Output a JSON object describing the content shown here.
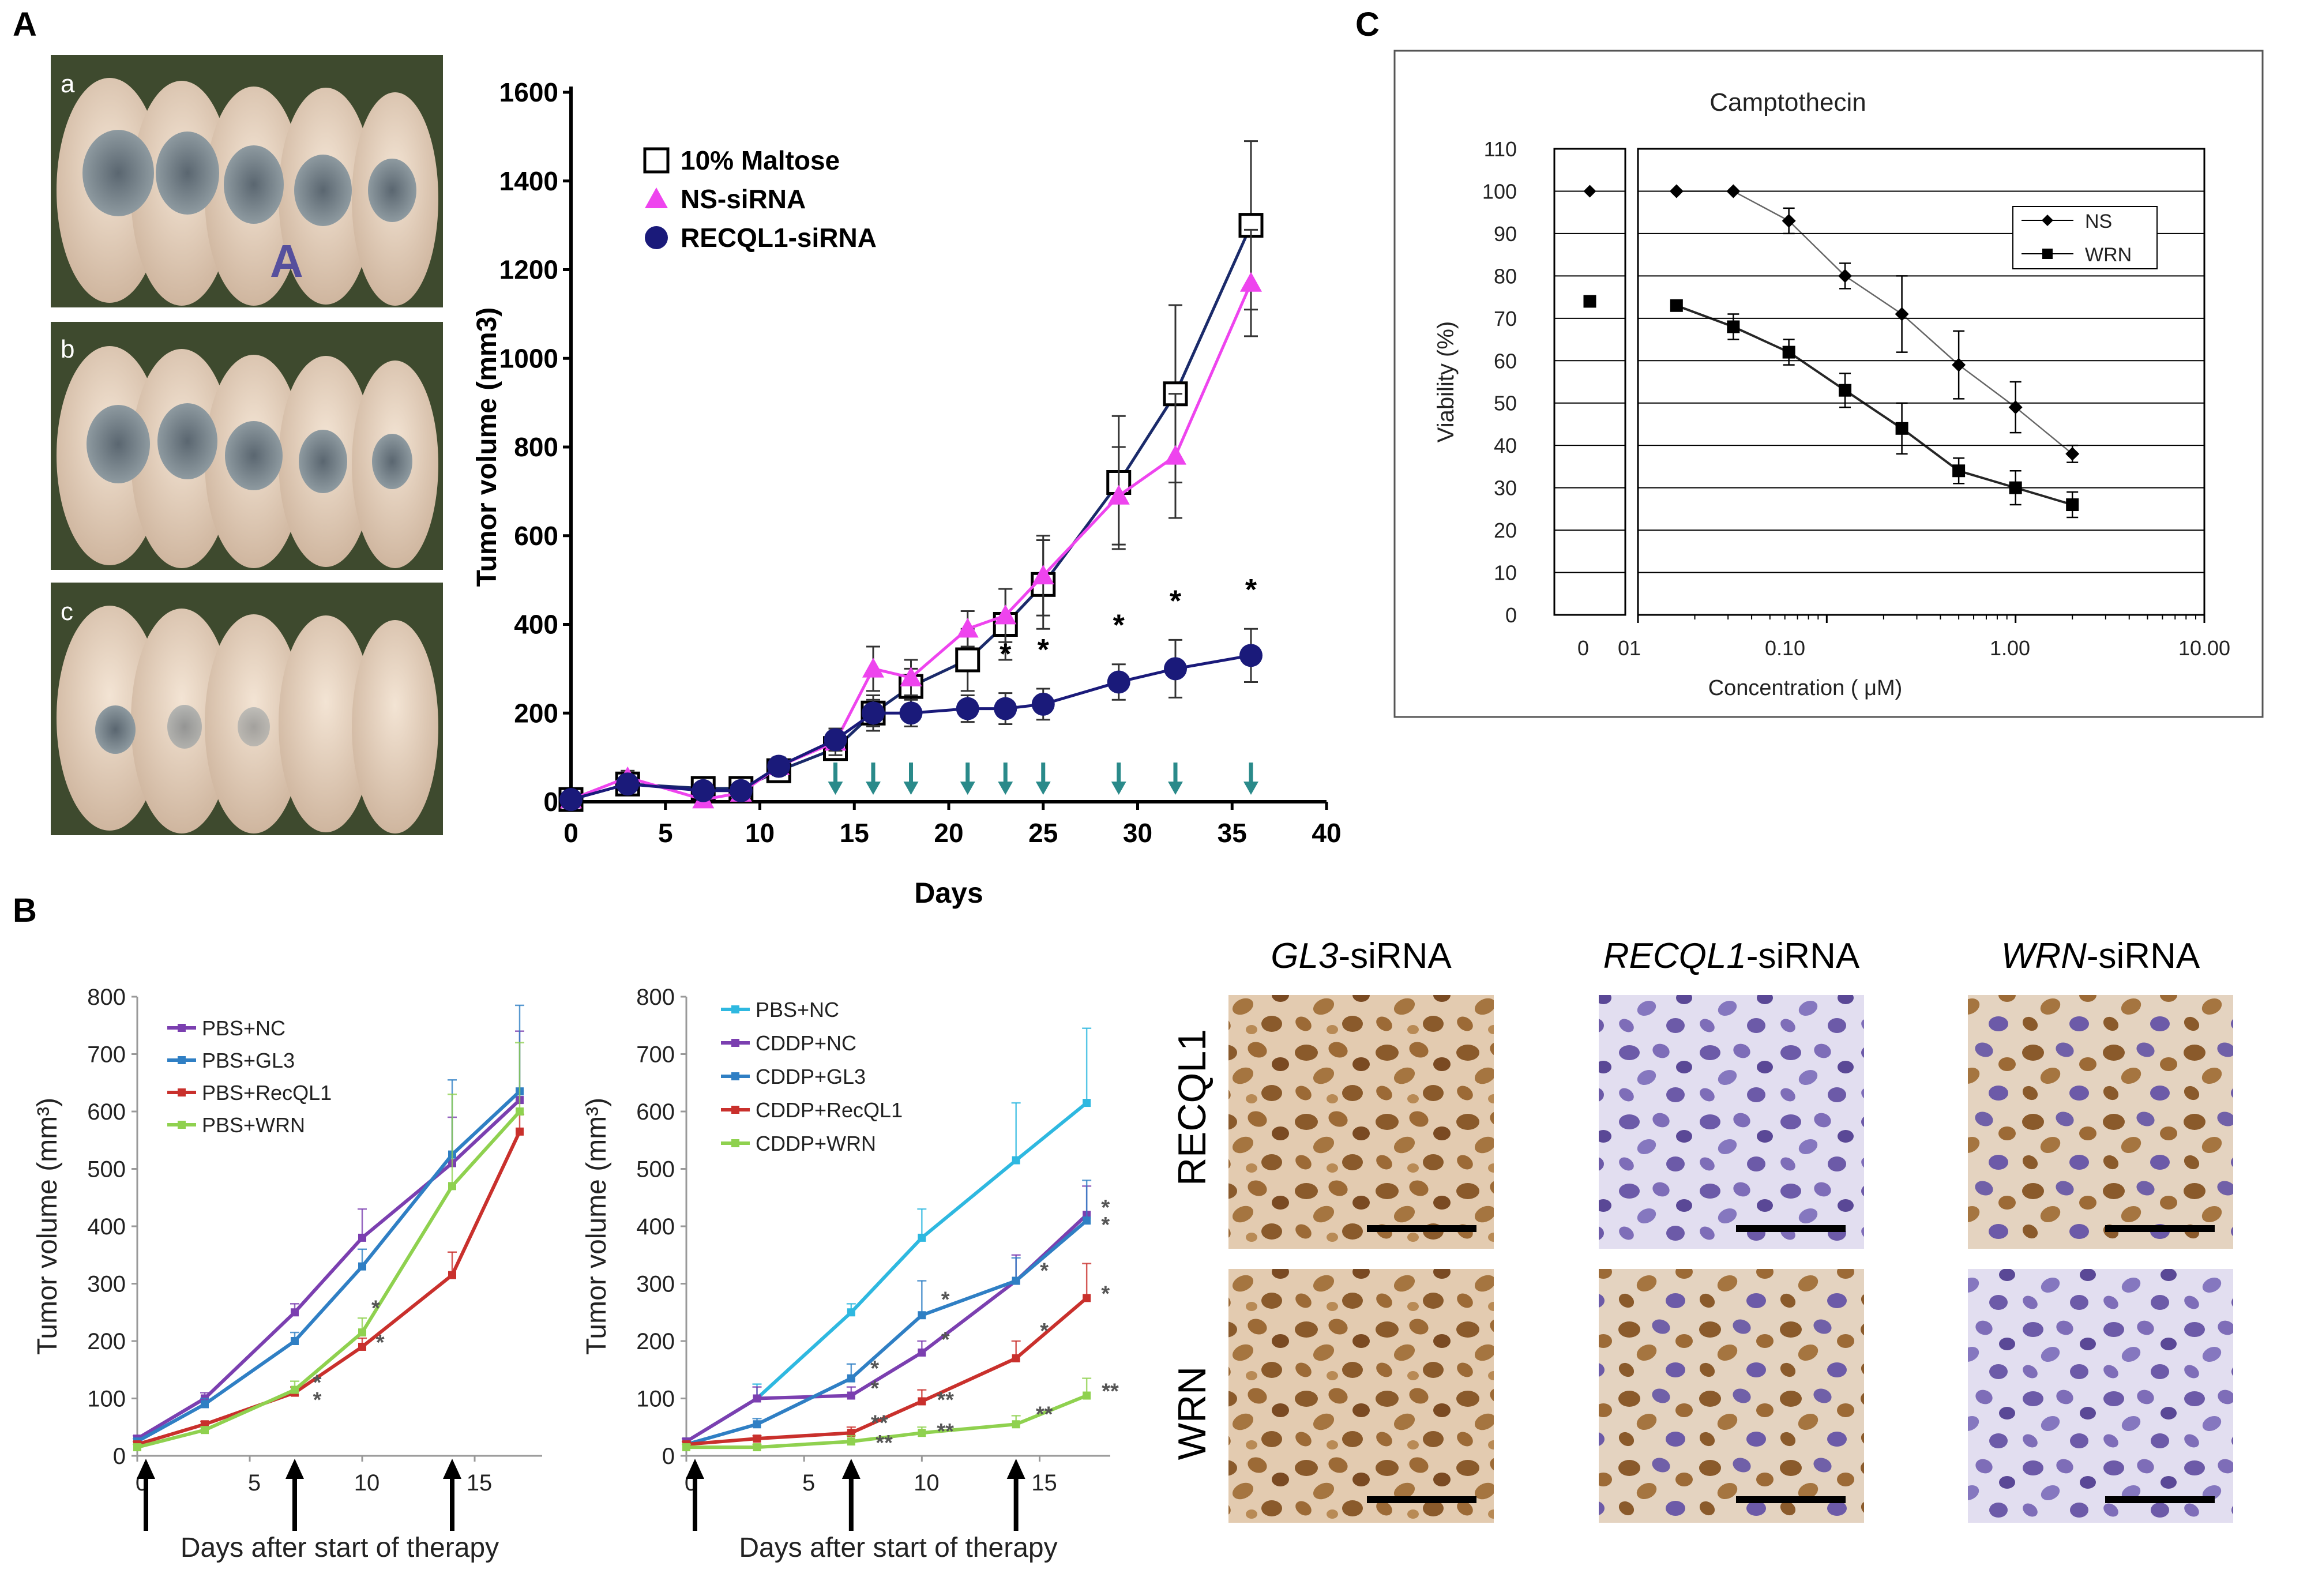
{
  "panel_labels": {
    "a": "A",
    "b": "B",
    "c": "C"
  },
  "colors": {
    "maltose": "#000000",
    "ns": "#ee44ee",
    "recql1": "#1a1a7a",
    "arrow_teal": "#2a8a8a",
    "pbs_nc": "#7b3fb0",
    "pbs_gl3": "#2f7fc4",
    "pbs_recql1": "#c9302c",
    "pbs_wrn": "#8fd14f",
    "c_pbs_nc": "#2eb8e0",
    "c_cddp_nc": "#7b3fb0",
    "c_cddp_gl3": "#2f7fc4",
    "c_cddp_recql1": "#c9302c",
    "c_cddp_wrn": "#8fd14f"
  },
  "photo_panel": {
    "labels": [
      "a",
      "b",
      "c"
    ],
    "arrowhead": "A"
  },
  "histology": {
    "columns": [
      {
        "gene": "GL3",
        "suffix": "-siRNA"
      },
      {
        "gene": "RECQL1",
        "suffix": "-siRNA"
      },
      {
        "gene": "WRN",
        "suffix": "-siRNA"
      }
    ],
    "rows": [
      "RECQL1",
      "WRN"
    ]
  },
  "chart_data": [
    {
      "id": "A",
      "type": "line",
      "xlabel": "Days",
      "ylabel": "Tumor volume (mm3)",
      "xlim": [
        0,
        40
      ],
      "ylim": [
        0,
        1600
      ],
      "xticks": [
        0,
        5,
        10,
        15,
        20,
        25,
        30,
        35,
        40
      ],
      "yticks": [
        0,
        200,
        400,
        600,
        800,
        1000,
        1200,
        1400,
        1600
      ],
      "series": [
        {
          "name": "10% Maltose",
          "marker": "open-square",
          "x": [
            0,
            3,
            7,
            9,
            11,
            14,
            16,
            18,
            21,
            23,
            25,
            29,
            32,
            36
          ],
          "y": [
            5,
            40,
            30,
            30,
            70,
            120,
            200,
            260,
            320,
            400,
            490,
            720,
            920,
            1300
          ],
          "err": [
            10,
            15,
            10,
            10,
            20,
            25,
            40,
            40,
            70,
            80,
            100,
            150,
            200,
            190
          ]
        },
        {
          "name": "NS-siRNA",
          "marker": "triangle",
          "x": [
            0,
            3,
            7,
            9,
            11,
            14,
            16,
            18,
            21,
            23,
            25,
            29,
            32,
            36
          ],
          "y": [
            5,
            55,
            5,
            20,
            80,
            135,
            300,
            280,
            390,
            420,
            510,
            690,
            780,
            1170
          ],
          "err": [
            10,
            15,
            10,
            10,
            20,
            30,
            50,
            40,
            40,
            60,
            90,
            110,
            140,
            120
          ]
        },
        {
          "name": "RECQL1-siRNA",
          "marker": "filled-circle",
          "x": [
            0,
            3,
            7,
            9,
            11,
            14,
            16,
            18,
            21,
            23,
            25,
            29,
            32,
            36
          ],
          "y": [
            5,
            40,
            25,
            25,
            80,
            140,
            200,
            200,
            210,
            210,
            220,
            270,
            300,
            330
          ],
          "err": [
            10,
            15,
            10,
            10,
            20,
            25,
            30,
            30,
            30,
            35,
            35,
            40,
            65,
            60
          ]
        }
      ],
      "treatment_arrows_days": [
        14,
        16,
        18,
        21,
        23,
        25,
        29,
        32,
        36
      ],
      "significance_days": [
        23,
        25,
        29,
        32,
        36
      ],
      "significance_mark": "*"
    },
    {
      "id": "B-left",
      "type": "line",
      "xlabel": "Days after start of therapy",
      "ylabel": "Tumor volume (mm³)",
      "xlim": [
        0,
        18
      ],
      "ylim": [
        0,
        800
      ],
      "xticks": [
        0,
        5,
        10,
        15
      ],
      "xtick_labels": [
        "0",
        "5",
        "10",
        "15"
      ],
      "yticks": [
        0,
        100,
        200,
        300,
        400,
        500,
        600,
        700,
        800
      ],
      "series": [
        {
          "name": "PBS+NC",
          "x": [
            0,
            3,
            7,
            10,
            14,
            17
          ],
          "y": [
            30,
            100,
            250,
            380,
            510,
            620
          ],
          "err": [
            5,
            10,
            15,
            50,
            80,
            120
          ]
        },
        {
          "name": "PBS+GL3",
          "x": [
            0,
            3,
            7,
            10,
            14,
            17
          ],
          "y": [
            25,
            90,
            200,
            330,
            525,
            635
          ],
          "err": [
            5,
            10,
            15,
            30,
            130,
            150
          ]
        },
        {
          "name": "PBS+RecQL1",
          "x": [
            0,
            3,
            7,
            10,
            14,
            17
          ],
          "y": [
            20,
            55,
            110,
            190,
            315,
            565
          ],
          "err": [
            5,
            5,
            10,
            15,
            40,
            30
          ]
        },
        {
          "name": "PBS+WRN",
          "x": [
            0,
            3,
            7,
            10,
            14,
            17
          ],
          "y": [
            15,
            45,
            115,
            215,
            470,
            600
          ],
          "err": [
            5,
            5,
            15,
            25,
            160,
            120
          ]
        }
      ],
      "arrows_days": [
        0,
        7,
        14
      ],
      "significance": [
        {
          "x": 8,
          "y": 125,
          "label": "*"
        },
        {
          "x": 8,
          "y": 95,
          "label": "*"
        },
        {
          "x": 10.6,
          "y": 255,
          "label": "*"
        },
        {
          "x": 10.8,
          "y": 195,
          "label": "*"
        }
      ]
    },
    {
      "id": "B-right",
      "type": "line",
      "xlabel": "Days after start of therapy",
      "ylabel": "Tumor volume (mm³)",
      "xlim": [
        0,
        18
      ],
      "ylim": [
        0,
        800
      ],
      "xticks": [
        0,
        5,
        10,
        15
      ],
      "xtick_labels": [
        "0",
        "5",
        "10",
        "15"
      ],
      "yticks": [
        0,
        100,
        200,
        300,
        400,
        500,
        600,
        700,
        800
      ],
      "series": [
        {
          "name": "PBS+NC",
          "x": [
            0,
            3,
            7,
            10,
            14,
            17
          ],
          "y": [
            25,
            100,
            250,
            380,
            515,
            615
          ],
          "err": [
            5,
            25,
            15,
            50,
            100,
            130
          ]
        },
        {
          "name": "CDDP+NC",
          "x": [
            0,
            3,
            7,
            10,
            14,
            17
          ],
          "y": [
            25,
            100,
            105,
            180,
            305,
            420
          ],
          "err": [
            5,
            20,
            15,
            20,
            45,
            50
          ]
        },
        {
          "name": "CDDP+GL3",
          "x": [
            0,
            3,
            7,
            10,
            14,
            17
          ],
          "y": [
            20,
            55,
            135,
            245,
            305,
            410
          ],
          "err": [
            5,
            10,
            25,
            60,
            40,
            70
          ]
        },
        {
          "name": "CDDP+RecQL1",
          "x": [
            0,
            3,
            7,
            10,
            14,
            17
          ],
          "y": [
            20,
            30,
            40,
            95,
            170,
            275
          ],
          "err": [
            5,
            5,
            10,
            20,
            30,
            60
          ]
        },
        {
          "name": "CDDP+WRN",
          "x": [
            0,
            3,
            7,
            10,
            14,
            17
          ],
          "y": [
            15,
            15,
            25,
            40,
            55,
            105
          ],
          "err": [
            5,
            5,
            10,
            10,
            15,
            30
          ]
        }
      ],
      "arrows_days": [
        0,
        7,
        14
      ],
      "significance": [
        {
          "x": 8,
          "y": 150,
          "label": "*"
        },
        {
          "x": 8,
          "y": 115,
          "label": "*"
        },
        {
          "x": 8.2,
          "y": 55,
          "label": "**"
        },
        {
          "x": 8.4,
          "y": 20,
          "label": "**"
        },
        {
          "x": 11,
          "y": 270,
          "label": "*"
        },
        {
          "x": 11,
          "y": 200,
          "label": "*"
        },
        {
          "x": 11,
          "y": 95,
          "label": "**"
        },
        {
          "x": 11,
          "y": 40,
          "label": "**"
        },
        {
          "x": 15.2,
          "y": 320,
          "label": "*"
        },
        {
          "x": 15.2,
          "y": 215,
          "label": "*"
        },
        {
          "x": 15.2,
          "y": 70,
          "label": "**"
        },
        {
          "x": 17.8,
          "y": 430,
          "label": "*"
        },
        {
          "x": 17.8,
          "y": 400,
          "label": "*"
        },
        {
          "x": 17.8,
          "y": 280,
          "label": "*"
        },
        {
          "x": 18,
          "y": 110,
          "label": "**"
        }
      ]
    },
    {
      "id": "C",
      "type": "line",
      "title": "Camptothecin",
      "xlabel": "Concentration ( μM)",
      "ylabel": "Viability (%)",
      "xscale": "log",
      "xlim": [
        0.01,
        10
      ],
      "ylim": [
        0,
        110
      ],
      "xtick_labels": [
        "0",
        "01",
        "0.10",
        "1.00",
        "10.00"
      ],
      "yticks": [
        0,
        10,
        20,
        30,
        40,
        50,
        60,
        70,
        80,
        90,
        100,
        110
      ],
      "zero_concentration": {
        "NS": 100,
        "WRN": 74
      },
      "series": [
        {
          "name": "NS",
          "marker": "diamond",
          "x": [
            0.016,
            0.032,
            0.063,
            0.125,
            0.25,
            0.5,
            1.0,
            2.0
          ],
          "y": [
            100,
            100,
            93,
            80,
            71,
            59,
            49,
            38
          ],
          "err": [
            0,
            0,
            3,
            3,
            9,
            8,
            6,
            2
          ]
        },
        {
          "name": "WRN",
          "marker": "square",
          "x": [
            0.016,
            0.032,
            0.063,
            0.125,
            0.25,
            0.5,
            1.0,
            2.0
          ],
          "y": [
            73,
            68,
            62,
            53,
            44,
            34,
            30,
            26
          ],
          "err": [
            0,
            3,
            3,
            4,
            6,
            3,
            4,
            3
          ]
        }
      ]
    }
  ]
}
